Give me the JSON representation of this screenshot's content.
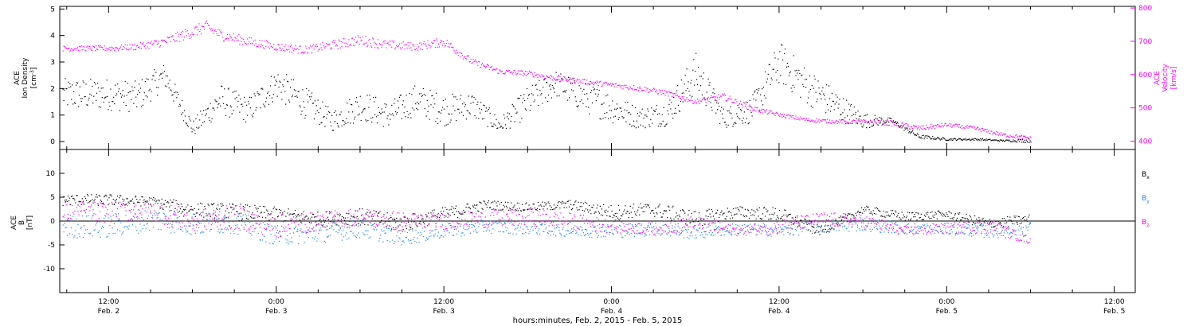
{
  "chart_data": [
    {
      "type": "scatter",
      "panel": "ion-density-and-velocity",
      "ylabel_lines": [
        "ACE",
        "Ion Density"
      ],
      "ylabel_unit": "[cm",
      "ylabel_unit_sup": "-3",
      "ylabel_unit_end": "]",
      "ylim": [
        -0.3,
        5.1
      ],
      "yticks": [
        "0",
        "1",
        "2",
        "3",
        "4",
        "5"
      ],
      "ylabel_right_lines": [
        "ACE",
        "Velocity",
        "[km/s]"
      ],
      "ylim_right": [
        375,
        805
      ],
      "yticks_right": [
        "400",
        "500",
        "600",
        "700",
        "800"
      ],
      "series": [
        {
          "color": "#000000",
          "axis": "left",
          "x": [
            0,
            2,
            4,
            6,
            8,
            10,
            12,
            14,
            16,
            18,
            20,
            22,
            24,
            26,
            28,
            30,
            32,
            34,
            36,
            38,
            40,
            42,
            44,
            46,
            48,
            50,
            52,
            54,
            56,
            58,
            60,
            62,
            64,
            66
          ],
          "y": [
            1.8,
            1.7,
            2.5,
            0.5,
            1.6,
            1.2,
            2.2,
            1.5,
            0.8,
            1.4,
            1.0,
            1.6,
            1.2,
            1.4,
            0.6,
            1.5,
            2.2,
            1.7,
            1.3,
            0.9,
            1.1,
            2.6,
            0.9,
            1.2,
            3.0,
            2.1,
            1.4,
            0.8,
            0.8,
            0.2,
            0.1,
            0.1,
            0.05,
            0.05
          ],
          "spread": [
            0.6,
            0.6,
            0.5,
            0.3,
            0.6,
            0.5,
            0.6,
            0.6,
            0.4,
            0.6,
            0.5,
            0.6,
            0.6,
            0.5,
            0.3,
            0.6,
            0.5,
            0.6,
            0.6,
            0.4,
            0.5,
            0.8,
            0.4,
            0.5,
            0.8,
            0.7,
            0.6,
            0.3,
            0.1,
            0.08,
            0.04,
            0.04,
            0.03,
            0.08
          ]
        },
        {
          "color": "#ff00ff",
          "axis": "right",
          "x": [
            0,
            2,
            4,
            6,
            7,
            8,
            10,
            12,
            14,
            16,
            18,
            20,
            22,
            24,
            26,
            28,
            30,
            32,
            34,
            36,
            38,
            40,
            42,
            44,
            46,
            48,
            50,
            52,
            54,
            56,
            58,
            60,
            62,
            64,
            66
          ],
          "y": [
            680,
            685,
            700,
            730,
            745,
            720,
            700,
            685,
            675,
            690,
            705,
            690,
            685,
            700,
            640,
            610,
            605,
            590,
            580,
            570,
            560,
            545,
            520,
            535,
            500,
            480,
            465,
            460,
            460,
            455,
            440,
            450,
            440,
            420,
            410
          ],
          "spread": [
            8,
            10,
            14,
            18,
            18,
            16,
            14,
            12,
            12,
            14,
            16,
            14,
            12,
            14,
            10,
            8,
            8,
            8,
            8,
            8,
            8,
            8,
            8,
            10,
            8,
            6,
            6,
            6,
            6,
            8,
            8,
            6,
            6,
            6,
            5
          ]
        }
      ]
    },
    {
      "type": "scatter",
      "panel": "magnetic-field",
      "ylabel_lines": [
        "ACE",
        "B",
        "[nT]"
      ],
      "ylim": [
        -15,
        15
      ],
      "yticks": [
        "-10",
        "-5",
        "0",
        "5",
        "10"
      ],
      "zero_line": 0,
      "series": [
        {
          "name": "B",
          "sub": "x",
          "color": "#000000",
          "x": [
            0,
            3,
            6,
            9,
            12,
            15,
            18,
            21,
            24,
            27,
            30,
            33,
            36,
            39,
            42,
            45,
            48,
            51,
            54,
            57,
            60,
            63,
            66
          ],
          "y": [
            4.5,
            4.2,
            2.5,
            2.0,
            1.5,
            0.5,
            1.0,
            -0.5,
            1.5,
            3.5,
            3.0,
            3.5,
            2.0,
            2.5,
            0.5,
            2.0,
            1.5,
            -2.0,
            2.5,
            1.0,
            1.5,
            -0.5,
            0.5
          ],
          "spread": [
            1.2,
            1.0,
            1.5,
            1.8,
            1.5,
            1.5,
            1.8,
            1.8,
            1.5,
            1.0,
            0.9,
            1.0,
            1.5,
            1.5,
            1.8,
            1.2,
            1.5,
            1.0,
            0.8,
            1.0,
            0.8,
            1.2,
            1.0
          ]
        },
        {
          "name": "B",
          "sub": "y",
          "color": "#1e88ff",
          "x": [
            0,
            3,
            6,
            9,
            12,
            15,
            18,
            21,
            24,
            27,
            30,
            33,
            36,
            39,
            42,
            45,
            48,
            51,
            54,
            57,
            60,
            63,
            66
          ],
          "y": [
            -1.0,
            0.5,
            -0.5,
            0.0,
            -3.0,
            -2.5,
            -1.5,
            -3.5,
            -2.0,
            -1.0,
            -1.5,
            -2.0,
            -2.0,
            -1.5,
            -2.5,
            -1.5,
            -2.0,
            -1.0,
            -0.5,
            -1.5,
            -1.5,
            -2.0,
            -1.5
          ],
          "spread": [
            2.5,
            2.5,
            2.5,
            2.5,
            2.0,
            2.0,
            2.0,
            1.5,
            1.5,
            1.5,
            1.2,
            1.2,
            1.5,
            1.5,
            1.2,
            1.2,
            1.2,
            1.5,
            1.5,
            1.2,
            1.2,
            1.5,
            1.5
          ]
        },
        {
          "name": "B",
          "sub": "z",
          "color": "#ff00ff",
          "x": [
            0,
            3,
            6,
            9,
            12,
            15,
            18,
            21,
            24,
            27,
            30,
            33,
            36,
            39,
            42,
            45,
            48,
            51,
            54,
            57,
            60,
            63,
            66
          ],
          "y": [
            2.0,
            2.5,
            0.0,
            1.0,
            -1.0,
            0.0,
            1.0,
            0.0,
            0.0,
            0.5,
            1.0,
            0.0,
            -1.0,
            -1.5,
            -0.5,
            -2.0,
            -1.0,
            0.5,
            0.0,
            -2.0,
            -1.5,
            -1.0,
            -4.0
          ],
          "spread": [
            2.2,
            2.2,
            2.5,
            2.5,
            2.5,
            2.0,
            2.0,
            2.0,
            1.8,
            1.8,
            1.8,
            1.8,
            1.5,
            1.2,
            1.8,
            1.0,
            1.5,
            1.5,
            1.5,
            1.0,
            1.2,
            1.5,
            0.8
          ]
        }
      ]
    }
  ],
  "x_axis": {
    "range_hours": [
      -3.5,
      73.5
    ],
    "ticks": [
      {
        "hour": 0,
        "time": "12:00",
        "date": "Feb. 2"
      },
      {
        "hour": 12,
        "time": "0:00",
        "date": "Feb. 3"
      },
      {
        "hour": 24,
        "time": "12:00",
        "date": "Feb. 3"
      },
      {
        "hour": 36,
        "time": "0:00",
        "date": "Feb. 4"
      },
      {
        "hour": 48,
        "time": "12:00",
        "date": "Feb. 4"
      },
      {
        "hour": 60,
        "time": "0:00",
        "date": "Feb. 5"
      },
      {
        "hour": 72,
        "time": "12:00",
        "date": "Feb. 5"
      }
    ],
    "data_gaps_hours": [
      [
        66.3,
        70
      ]
    ],
    "xlabel": "hours:minutes, Feb.  2, 2015 - Feb.  5, 2015"
  }
}
